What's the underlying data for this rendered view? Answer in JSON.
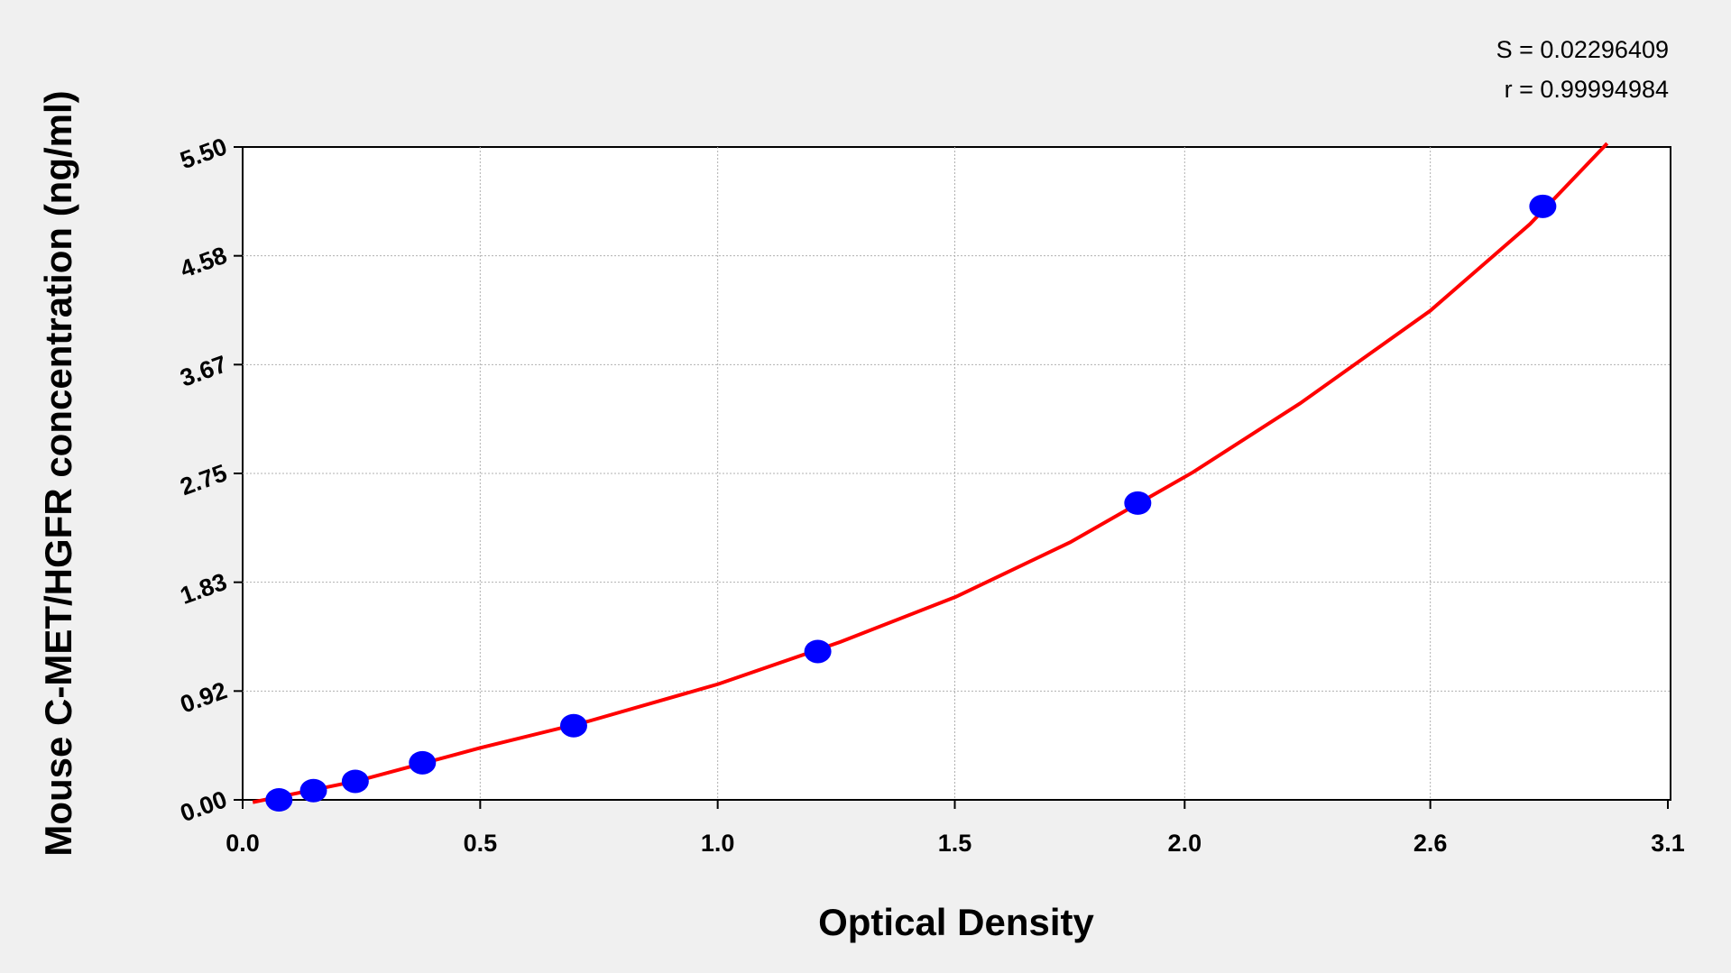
{
  "chart_data": {
    "type": "scatter",
    "annotations": [
      "S = 0.02296409",
      "r = 0.99994984"
    ],
    "xlabel": "Optical Density",
    "ylabel": "Mouse C-MET/HGFR concentration (ng/ml)",
    "xlim": [
      0,
      3.1
    ],
    "ylim": [
      0,
      5.5
    ],
    "xticks": [
      {
        "value": 0,
        "label": "0.0"
      },
      {
        "value": 0.5167,
        "label": "0.5"
      },
      {
        "value": 1.0333,
        "label": "1.0"
      },
      {
        "value": 1.549,
        "label": "1.5"
      },
      {
        "value": 2.049,
        "label": "2.0"
      },
      {
        "value": 2.5833,
        "label": "2.6"
      },
      {
        "value": 3.1,
        "label": "3.1"
      }
    ],
    "yticks": [
      {
        "value": 0,
        "label": "0.00"
      },
      {
        "value": 0.9167,
        "label": "0.92"
      },
      {
        "value": 1.8333,
        "label": "1.83"
      },
      2.75,
      {
        "value": 3.6667,
        "label": "3.67"
      },
      {
        "value": 4.5833,
        "label": "4.58"
      },
      {
        "value": 5.5,
        "label": "5.50"
      }
    ],
    "grid": true,
    "series": [
      {
        "color": "#0000ff",
        "x": [
          0.079,
          0.154,
          0.245,
          0.391,
          0.72,
          1.251,
          1.947,
          2.828
        ],
        "values": [
          0,
          0.078,
          0.156,
          0.3125,
          0.625,
          1.25,
          2.5,
          5
        ]
      },
      {
        "type": "line",
        "color": "#ff0000",
        "x": [
          0.022,
          0.25,
          0.516,
          0.75,
          1.035,
          1.3,
          1.551,
          1.8,
          2.067,
          2.3,
          2.583,
          2.8,
          2.968
        ],
        "values": [
          -0.02,
          0.16,
          0.437,
          0.66,
          0.976,
          1.33,
          1.71,
          2.17,
          2.76,
          3.34,
          4.12,
          4.85,
          5.53
        ]
      }
    ]
  }
}
